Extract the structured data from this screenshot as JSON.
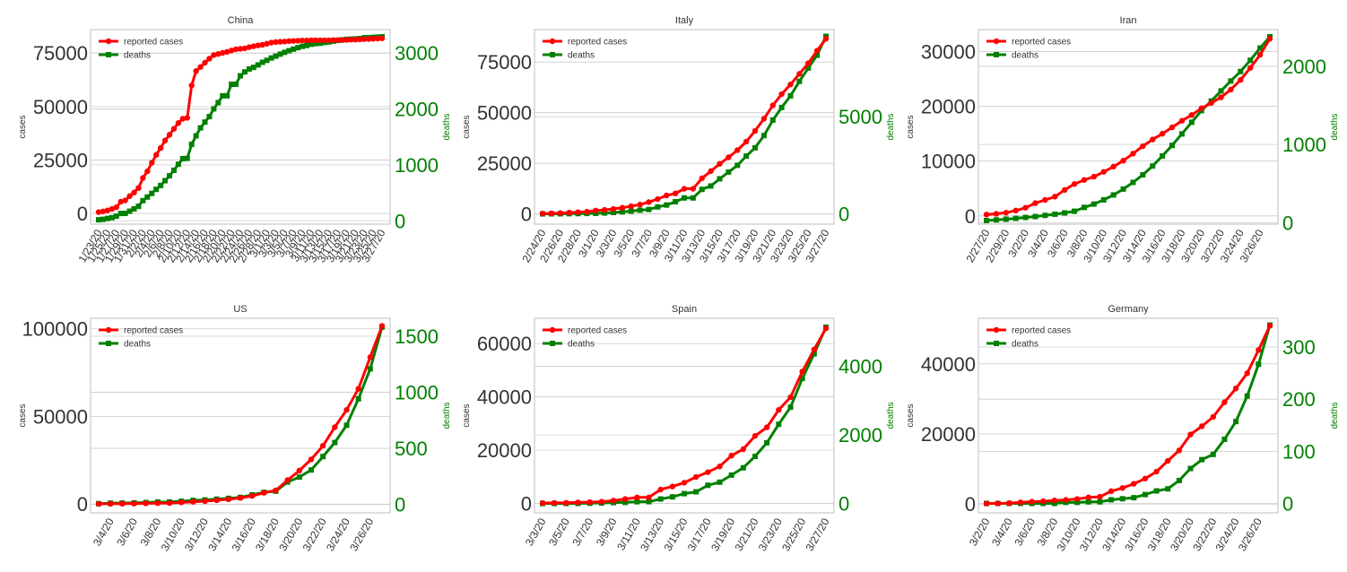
{
  "colors": {
    "cases": "#ff0000",
    "deaths": "#008000",
    "grid": "#cccccc",
    "frame": "#bfbfbf"
  },
  "legend": {
    "cases_label": "reported cases",
    "deaths_label": "deaths",
    "placement": "top-left"
  },
  "chart_data": [
    {
      "type": "line",
      "title": "China",
      "ylabel_left": "cases",
      "ylabel_right": "deaths",
      "x": [
        "1/23/20",
        "1/24/20",
        "1/25/20",
        "1/26/20",
        "1/27/20",
        "1/28/20",
        "1/29/20",
        "1/30/20",
        "1/31/20",
        "2/1/20",
        "2/2/20",
        "2/3/20",
        "2/4/20",
        "2/5/20",
        "2/6/20",
        "2/7/20",
        "2/8/20",
        "2/9/20",
        "2/10/20",
        "2/11/20",
        "2/12/20",
        "2/13/20",
        "2/14/20",
        "2/15/20",
        "2/16/20",
        "2/17/20",
        "2/18/20",
        "2/19/20",
        "2/20/20",
        "2/21/20",
        "2/22/20",
        "2/23/20",
        "2/24/20",
        "2/25/20",
        "2/26/20",
        "2/27/20",
        "2/28/20",
        "2/29/20",
        "3/1/20",
        "3/2/20",
        "3/3/20",
        "3/4/20",
        "3/5/20",
        "3/6/20",
        "3/7/20",
        "3/8/20",
        "3/9/20",
        "3/10/20",
        "3/11/20",
        "3/12/20",
        "3/13/20",
        "3/14/20",
        "3/15/20",
        "3/16/20",
        "3/17/20",
        "3/18/20",
        "3/19/20",
        "3/20/20",
        "3/21/20",
        "3/22/20",
        "3/23/20",
        "3/24/20",
        "3/25/20",
        "3/26/20",
        "3/27/20"
      ],
      "xticks": [
        "1/23/20",
        "1/25/20",
        "1/27/20",
        "1/29/20",
        "1/31/20",
        "2/2/20",
        "2/4/20",
        "2/6/20",
        "2/8/20",
        "2/10/20",
        "2/12/20",
        "2/14/20",
        "2/16/20",
        "2/18/20",
        "2/20/20",
        "2/22/20",
        "2/24/20",
        "2/26/20",
        "2/28/20",
        "3/1/20",
        "3/3/20",
        "3/5/20",
        "3/7/20",
        "3/9/20",
        "3/11/20",
        "3/13/20",
        "3/15/20",
        "3/17/20",
        "3/19/20",
        "3/21/20",
        "3/23/20",
        "3/25/20",
        "3/27/20"
      ],
      "series": [
        {
          "name": "reported cases",
          "axis": "left",
          "values": [
            640,
            920,
            1400,
            2100,
            2900,
            5500,
            6100,
            8100,
            9800,
            11900,
            16600,
            19700,
            23700,
            27400,
            30600,
            34100,
            36800,
            39600,
            42300,
            44300,
            44700,
            59900,
            66600,
            68500,
            70500,
            72400,
            74100,
            74600,
            75100,
            75600,
            76200,
            76800,
            77000,
            77200,
            77800,
            78200,
            78600,
            78900,
            79400,
            79900,
            80200,
            80300,
            80400,
            80600,
            80700,
            80800,
            80900,
            80900,
            81000,
            81000,
            81000,
            81000,
            81000,
            81100,
            81100,
            81100,
            81200,
            81300,
            81300,
            81400,
            81500,
            81600,
            81700,
            81800,
            81900
          ]
        },
        {
          "name": "deaths",
          "axis": "right",
          "values": [
            18,
            26,
            42,
            56,
            82,
            131,
            133,
            171,
            213,
            259,
            361,
            425,
            490,
            562,
            632,
            717,
            804,
            904,
            1011,
            1111,
            1116,
            1368,
            1520,
            1662,
            1765,
            1863,
            2002,
            2114,
            2236,
            2236,
            2441,
            2443,
            2593,
            2663,
            2715,
            2744,
            2788,
            2835,
            2870,
            2912,
            2945,
            2981,
            3013,
            3042,
            3070,
            3097,
            3120,
            3136,
            3158,
            3169,
            3176,
            3189,
            3199,
            3213,
            3226,
            3237,
            3245,
            3249,
            3253,
            3259,
            3274,
            3274,
            3281,
            3285,
            3291
          ]
        }
      ],
      "ylim_left": [
        -5000,
        86000
      ],
      "yticks_left": [
        0,
        25000,
        50000,
        75000
      ],
      "ylim_right": [
        -60,
        3420
      ],
      "yticks_right": [
        0,
        1000,
        2000,
        3000
      ]
    },
    {
      "type": "line",
      "title": "Italy",
      "ylabel_left": "cases",
      "ylabel_right": "deaths",
      "x": [
        "2/24/20",
        "2/25/20",
        "2/26/20",
        "2/27/20",
        "2/28/20",
        "2/29/20",
        "3/1/20",
        "3/2/20",
        "3/3/20",
        "3/4/20",
        "3/5/20",
        "3/6/20",
        "3/7/20",
        "3/8/20",
        "3/9/20",
        "3/10/20",
        "3/11/20",
        "3/12/20",
        "3/13/20",
        "3/14/20",
        "3/15/20",
        "3/16/20",
        "3/17/20",
        "3/18/20",
        "3/19/20",
        "3/20/20",
        "3/21/20",
        "3/22/20",
        "3/23/20",
        "3/24/20",
        "3/25/20",
        "3/26/20",
        "3/27/20"
      ],
      "xticks": [
        "2/24/20",
        "2/26/20",
        "2/28/20",
        "3/1/20",
        "3/3/20",
        "3/5/20",
        "3/7/20",
        "3/9/20",
        "3/11/20",
        "3/13/20",
        "3/15/20",
        "3/17/20",
        "3/19/20",
        "3/21/20",
        "3/23/20",
        "3/25/20",
        "3/27/20"
      ],
      "series": [
        {
          "name": "reported cases",
          "axis": "left",
          "values": [
            229,
            322,
            453,
            655,
            888,
            1128,
            1694,
            2036,
            2502,
            3089,
            3858,
            4636,
            5883,
            7375,
            9172,
            10149,
            12462,
            12462,
            17660,
            21157,
            24747,
            27980,
            31506,
            35713,
            41035,
            47021,
            53578,
            59138,
            63927,
            69176,
            74386,
            80589,
            86498
          ]
        },
        {
          "name": "deaths",
          "axis": "right",
          "values": [
            7,
            10,
            12,
            17,
            21,
            29,
            34,
            52,
            79,
            107,
            148,
            197,
            233,
            366,
            463,
            631,
            827,
            827,
            1266,
            1441,
            1809,
            2158,
            2503,
            2978,
            3405,
            4032,
            4825,
            5476,
            6077,
            6820,
            7503,
            8165,
            9134
          ]
        }
      ],
      "ylim_left": [
        -5000,
        91000
      ],
      "yticks_left": [
        0,
        25000,
        50000,
        75000
      ],
      "ylim_right": [
        -520,
        9480
      ],
      "yticks_right": [
        0,
        5000
      ]
    },
    {
      "type": "line",
      "title": "Iran",
      "ylabel_left": "cases",
      "ylabel_right": "deaths",
      "x": [
        "2/27/20",
        "2/28/20",
        "2/29/20",
        "3/1/20",
        "3/2/20",
        "3/3/20",
        "3/4/20",
        "3/5/20",
        "3/6/20",
        "3/7/20",
        "3/8/20",
        "3/9/20",
        "3/10/20",
        "3/11/20",
        "3/12/20",
        "3/13/20",
        "3/14/20",
        "3/15/20",
        "3/16/20",
        "3/17/20",
        "3/18/20",
        "3/19/20",
        "3/20/20",
        "3/21/20",
        "3/22/20",
        "3/23/20",
        "3/24/20",
        "3/25/20",
        "3/26/20",
        "3/27/20"
      ],
      "xticks": [
        "2/27/20",
        "2/29/20",
        "3/2/20",
        "3/4/20",
        "3/6/20",
        "3/8/20",
        "3/10/20",
        "3/12/20",
        "3/14/20",
        "3/16/20",
        "3/18/20",
        "3/20/20",
        "3/22/20",
        "3/24/20",
        "3/26/20"
      ],
      "series": [
        {
          "name": "reported cases",
          "axis": "left",
          "values": [
            245,
            388,
            593,
            978,
            1501,
            2336,
            2922,
            3513,
            4747,
            5823,
            6566,
            7161,
            8042,
            9000,
            10075,
            11364,
            12729,
            13938,
            14991,
            16169,
            17361,
            18407,
            19644,
            20610,
            21638,
            23049,
            24811,
            27017,
            29406,
            32332
          ]
        },
        {
          "name": "deaths",
          "axis": "right",
          "values": [
            26,
            34,
            43,
            54,
            66,
            77,
            92,
            107,
            124,
            145,
            194,
            237,
            291,
            354,
            429,
            514,
            611,
            724,
            853,
            988,
            1135,
            1284,
            1433,
            1556,
            1685,
            1812,
            1934,
            2077,
            2234,
            2378
          ]
        }
      ],
      "ylim_left": [
        -1500,
        34000
      ],
      "yticks_left": [
        0,
        10000,
        20000,
        30000
      ],
      "ylim_right": [
        -20,
        2470
      ],
      "yticks_right": [
        0,
        1000,
        2000
      ]
    },
    {
      "type": "line",
      "title": "US",
      "ylabel_left": "cases",
      "ylabel_right": "deaths",
      "x": [
        "3/3/20",
        "3/4/20",
        "3/5/20",
        "3/6/20",
        "3/7/20",
        "3/8/20",
        "3/9/20",
        "3/10/20",
        "3/11/20",
        "3/12/20",
        "3/13/20",
        "3/14/20",
        "3/15/20",
        "3/16/20",
        "3/17/20",
        "3/18/20",
        "3/19/20",
        "3/20/20",
        "3/21/20",
        "3/22/20",
        "3/23/20",
        "3/24/20",
        "3/25/20",
        "3/26/20",
        "3/27/20"
      ],
      "xticks": [
        "3/4/20",
        "3/6/20",
        "3/8/20",
        "3/10/20",
        "3/12/20",
        "3/14/20",
        "3/16/20",
        "3/18/20",
        "3/20/20",
        "3/22/20",
        "3/24/20",
        "3/26/20"
      ],
      "series": [
        {
          "name": "reported cases",
          "axis": "left",
          "values": [
            118,
            149,
            217,
            262,
            402,
            518,
            583,
            959,
            1281,
            1663,
            2179,
            2727,
            3499,
            4632,
            6421,
            7786,
            13680,
            19101,
            25493,
            33276,
            43847,
            53740,
            65778,
            83836,
            101657
          ]
        },
        {
          "name": "deaths",
          "axis": "right",
          "values": [
            7,
            11,
            12,
            14,
            17,
            21,
            22,
            28,
            36,
            40,
            47,
            54,
            63,
            85,
            108,
            118,
            200,
            244,
            307,
            427,
            552,
            706,
            942,
            1209,
            1581
          ]
        }
      ],
      "ylim_left": [
        -5000,
        106000
      ],
      "yticks_left": [
        0,
        50000,
        100000
      ],
      "ylim_right": [
        -75,
        1660
      ],
      "yticks_right": [
        0,
        500,
        1000,
        1500
      ]
    },
    {
      "type": "line",
      "title": "Spain",
      "ylabel_left": "cases",
      "ylabel_right": "deaths",
      "x": [
        "3/3/20",
        "3/4/20",
        "3/5/20",
        "3/6/20",
        "3/7/20",
        "3/8/20",
        "3/9/20",
        "3/10/20",
        "3/11/20",
        "3/12/20",
        "3/13/20",
        "3/14/20",
        "3/15/20",
        "3/16/20",
        "3/17/20",
        "3/18/20",
        "3/19/20",
        "3/20/20",
        "3/21/20",
        "3/22/20",
        "3/23/20",
        "3/24/20",
        "3/25/20",
        "3/26/20",
        "3/27/20"
      ],
      "xticks": [
        "3/3/20",
        "3/5/20",
        "3/7/20",
        "3/9/20",
        "3/11/20",
        "3/13/20",
        "3/15/20",
        "3/17/20",
        "3/19/20",
        "3/21/20",
        "3/23/20",
        "3/25/20",
        "3/27/20"
      ],
      "series": [
        {
          "name": "reported cases",
          "axis": "left",
          "values": [
            165,
            222,
            259,
            400,
            500,
            673,
            1073,
            1695,
            2277,
            2277,
            5232,
            6391,
            7798,
            9942,
            11748,
            13910,
            17963,
            20410,
            25374,
            28603,
            35136,
            39885,
            49515,
            57786,
            65719
          ]
        },
        {
          "name": "deaths",
          "axis": "right",
          "values": [
            1,
            2,
            3,
            5,
            10,
            17,
            28,
            35,
            54,
            55,
            133,
            195,
            289,
            342,
            533,
            623,
            830,
            1043,
            1375,
            1772,
            2311,
            2808,
            3647,
            4365,
            5138
          ]
        }
      ],
      "ylim_left": [
        -3500,
        69500
      ],
      "yticks_left": [
        0,
        20000,
        40000,
        60000
      ],
      "ylim_right": [
        -270,
        5400
      ],
      "yticks_right": [
        0,
        2000,
        4000
      ]
    },
    {
      "type": "line",
      "title": "Germany",
      "ylabel_left": "cases",
      "ylabel_right": "deaths",
      "x": [
        "3/2/20",
        "3/3/20",
        "3/4/20",
        "3/5/20",
        "3/6/20",
        "3/7/20",
        "3/8/20",
        "3/9/20",
        "3/10/20",
        "3/11/20",
        "3/12/20",
        "3/13/20",
        "3/14/20",
        "3/15/20",
        "3/16/20",
        "3/17/20",
        "3/18/20",
        "3/19/20",
        "3/20/20",
        "3/21/20",
        "3/22/20",
        "3/23/20",
        "3/24/20",
        "3/25/20",
        "3/26/20",
        "3/27/20"
      ],
      "xticks": [
        "3/2/20",
        "3/4/20",
        "3/6/20",
        "3/8/20",
        "3/10/20",
        "3/12/20",
        "3/14/20",
        "3/16/20",
        "3/18/20",
        "3/20/20",
        "3/22/20",
        "3/24/20",
        "3/26/20"
      ],
      "series": [
        {
          "name": "reported cases",
          "axis": "left",
          "values": [
            159,
            196,
            262,
            482,
            670,
            799,
            1040,
            1176,
            1457,
            1908,
            2078,
            3675,
            4585,
            5795,
            7272,
            9257,
            12327,
            15320,
            19848,
            22213,
            24873,
            29056,
            32986,
            37323,
            43938,
            50871
          ]
        },
        {
          "name": "deaths",
          "axis": "right",
          "values": [
            0,
            0,
            0,
            0,
            0,
            0,
            0,
            2,
            2,
            3,
            3,
            7,
            9,
            11,
            17,
            24,
            28,
            44,
            67,
            84,
            94,
            123,
            157,
            206,
            267,
            342
          ]
        }
      ],
      "ylim_left": [
        -2500,
        53000
      ],
      "yticks_left": [
        0,
        20000,
        40000
      ],
      "ylim_right": [
        -18,
        355
      ],
      "yticks_right": [
        0,
        100,
        200,
        300
      ]
    }
  ]
}
